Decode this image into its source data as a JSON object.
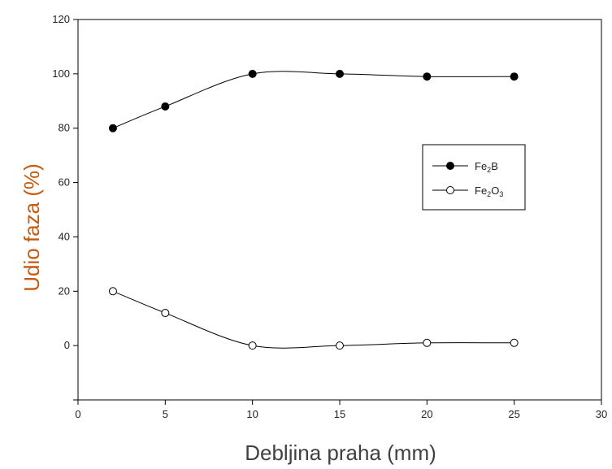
{
  "chart_data": {
    "type": "line",
    "title": "",
    "xlabel": "Debljina praha (mm)",
    "ylabel": "Udio faza (%)",
    "xlim": [
      0,
      30
    ],
    "ylim": [
      -20,
      120
    ],
    "xticks": [
      0,
      5,
      10,
      15,
      20,
      25,
      30
    ],
    "yticks": [
      0,
      20,
      40,
      60,
      80,
      100,
      120
    ],
    "grid": false,
    "legend_position": "right",
    "series": [
      {
        "name": "Fe2B",
        "label_main_1": "Fe",
        "label_sub_1": "2",
        "label_main_2": "B",
        "marker": "filled-circle",
        "x": [
          2,
          5,
          10,
          15,
          20,
          25
        ],
        "y": [
          80,
          88,
          100,
          100,
          99,
          99
        ]
      },
      {
        "name": "Fe2O3",
        "label_main_1": "Fe",
        "label_sub_1": "2",
        "label_main_2": "O",
        "label_sub_2": "3",
        "marker": "open-circle",
        "x": [
          2,
          5,
          10,
          15,
          20,
          25
        ],
        "y": [
          20,
          12,
          0,
          0,
          1,
          1
        ]
      }
    ]
  }
}
